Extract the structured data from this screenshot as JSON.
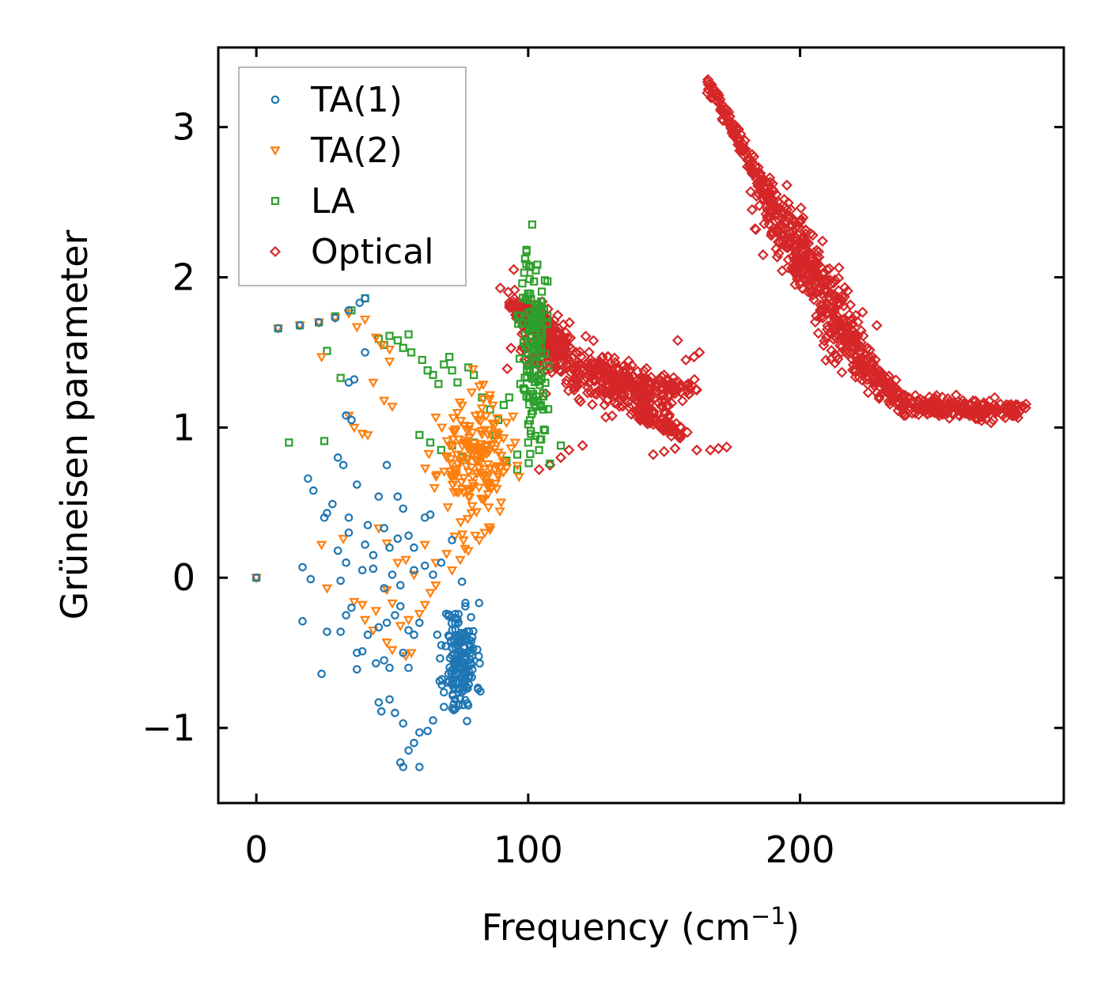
{
  "chart_data": {
    "type": "scatter",
    "title": "",
    "xlabel": "Frequency (cm",
    "xlabel_sup": "−1",
    "xlabel_close": ")",
    "ylabel": "Grüneisen parameter",
    "xlim": [
      -14,
      297
    ],
    "ylim": [
      -1.5,
      3.53
    ],
    "xticks": [
      0,
      100,
      200
    ],
    "xtick_labels": [
      "0",
      "100",
      "200"
    ],
    "yticks": [
      -1,
      0,
      1,
      2,
      3
    ],
    "ytick_labels": [
      "−1",
      "0",
      "1",
      "2",
      "3"
    ],
    "grid": false,
    "legend_position": "top-left",
    "series": [
      {
        "name": "TA(1)",
        "marker": "circle",
        "color": "#1f77b4",
        "points": [
          [
            0,
            0
          ],
          [
            8,
            1.66
          ],
          [
            16,
            1.68
          ],
          [
            23,
            1.7
          ],
          [
            29,
            1.73
          ],
          [
            34,
            1.78
          ],
          [
            38,
            1.83
          ],
          [
            40,
            1.86
          ],
          [
            34,
            1.3
          ],
          [
            36,
            1.32
          ],
          [
            40,
            1.5
          ],
          [
            33,
            1.08
          ],
          [
            35,
            1.05
          ],
          [
            30,
            0.8
          ],
          [
            32,
            0.75
          ],
          [
            19,
            0.66
          ],
          [
            21,
            0.58
          ],
          [
            37,
            0.62
          ],
          [
            48,
            0.75
          ],
          [
            45,
            0.54
          ],
          [
            52,
            0.54
          ],
          [
            54,
            0.46
          ],
          [
            28,
            0.49
          ],
          [
            25,
            0.4
          ],
          [
            26,
            0.43
          ],
          [
            34,
            0.4
          ],
          [
            30,
            0.18
          ],
          [
            34,
            0.3
          ],
          [
            40,
            0.22
          ],
          [
            41,
            0.35
          ],
          [
            43,
            0.15
          ],
          [
            47,
            0.33
          ],
          [
            49,
            0.2
          ],
          [
            52,
            0.26
          ],
          [
            56,
            0.28
          ],
          [
            58,
            0.2
          ],
          [
            62,
            0.4
          ],
          [
            64,
            0.42
          ],
          [
            17,
            0.07
          ],
          [
            20,
            -0.01
          ],
          [
            31,
            -0.02
          ],
          [
            33,
            0.1
          ],
          [
            39,
            0.05
          ],
          [
            43,
            0.06
          ],
          [
            47,
            -0.07
          ],
          [
            50,
            0.02
          ],
          [
            53,
            -0.05
          ],
          [
            58,
            0.05
          ],
          [
            62,
            0.08
          ],
          [
            65,
            0.02
          ],
          [
            68,
            0.1
          ],
          [
            72,
            0.25
          ],
          [
            17,
            -0.29
          ],
          [
            26,
            -0.36
          ],
          [
            31,
            -0.36
          ],
          [
            33,
            -0.25
          ],
          [
            35,
            -0.2
          ],
          [
            41,
            -0.38
          ],
          [
            45,
            -0.33
          ],
          [
            48,
            -0.3
          ],
          [
            51,
            -0.25
          ],
          [
            53,
            -0.19
          ],
          [
            56,
            -0.35
          ],
          [
            58,
            -0.38
          ],
          [
            60,
            -0.3
          ],
          [
            37,
            -0.5
          ],
          [
            39,
            -0.49
          ],
          [
            37,
            -0.61
          ],
          [
            44,
            -0.57
          ],
          [
            47,
            -0.55
          ],
          [
            49,
            -0.6
          ],
          [
            54,
            -0.5
          ],
          [
            56,
            -0.6
          ],
          [
            24,
            -0.64
          ],
          [
            45,
            -0.83
          ],
          [
            46,
            -0.89
          ],
          [
            49,
            -0.81
          ],
          [
            51,
            -0.9
          ],
          [
            54,
            -0.97
          ],
          [
            53,
            -1.23
          ],
          [
            54,
            -1.26
          ],
          [
            60,
            -1.26
          ],
          [
            58,
            -1.1
          ],
          [
            56,
            -1.15
          ],
          [
            60,
            -1.03
          ],
          [
            63,
            -1.02
          ],
          [
            65,
            -0.95
          ],
          [
            69,
            -0.86
          ]
        ],
        "cluster": {
          "center": [
            75,
            -0.55
          ],
          "spread": [
            5,
            0.32
          ],
          "count": 170,
          "seed": 11
        }
      },
      {
        "name": "TA(2)",
        "marker": "triangle-down",
        "color": "#ff7f0e",
        "points": [
          [
            0,
            0
          ],
          [
            8,
            1.66
          ],
          [
            16,
            1.68
          ],
          [
            23,
            1.7
          ],
          [
            29,
            1.73
          ],
          [
            34,
            1.76
          ],
          [
            37,
            1.67
          ],
          [
            40,
            1.72
          ],
          [
            44,
            1.6
          ],
          [
            46,
            1.55
          ],
          [
            49,
            1.52
          ],
          [
            24,
            1.47
          ],
          [
            49,
            1.44
          ],
          [
            43,
            1.3
          ],
          [
            47,
            1.18
          ],
          [
            50,
            1.14
          ],
          [
            34,
            1.08
          ],
          [
            36,
            1.0
          ],
          [
            39,
            0.96
          ],
          [
            41,
            0.95
          ],
          [
            24,
            0.22
          ],
          [
            32,
            0.26
          ],
          [
            26,
            -0.07
          ],
          [
            36,
            -0.16
          ],
          [
            39,
            -0.18
          ],
          [
            44,
            -0.22
          ],
          [
            40,
            -0.28
          ],
          [
            43,
            -0.35
          ],
          [
            48,
            -0.43
          ],
          [
            50,
            -0.48
          ],
          [
            55,
            -0.52
          ],
          [
            57,
            -0.5
          ],
          [
            48,
            -0.08
          ],
          [
            50,
            -0.17
          ],
          [
            53,
            -0.32
          ],
          [
            56,
            -0.28
          ],
          [
            60,
            -0.24
          ],
          [
            62,
            -0.18
          ],
          [
            64,
            -0.1
          ],
          [
            66,
            -0.05
          ],
          [
            45,
            0.33
          ],
          [
            48,
            0.23
          ],
          [
            52,
            0.1
          ],
          [
            55,
            0.12
          ],
          [
            58,
            0.02
          ],
          [
            62,
            0.22
          ],
          [
            66,
            0.1
          ],
          [
            70,
            0.16
          ],
          [
            72,
            0.05
          ],
          [
            75,
            0.12
          ],
          [
            78,
            0.18
          ],
          [
            82,
            0.25
          ],
          [
            84,
            0.3
          ],
          [
            86,
            0.32
          ]
        ],
        "cluster": {
          "center": [
            80,
            0.78
          ],
          "spread": [
            11,
            0.33
          ],
          "count": 190,
          "seed": 23
        }
      },
      {
        "name": "LA",
        "marker": "square",
        "color": "#2ca02c",
        "points": [
          [
            0,
            0
          ],
          [
            8,
            1.66
          ],
          [
            16,
            1.68
          ],
          [
            23,
            1.7
          ],
          [
            29,
            1.74
          ],
          [
            35,
            1.78
          ],
          [
            40,
            1.86
          ],
          [
            12,
            0.9
          ],
          [
            25,
            0.91
          ],
          [
            31,
            1.33
          ],
          [
            26,
            1.51
          ],
          [
            45,
            1.59
          ],
          [
            47,
            1.55
          ],
          [
            49,
            1.61
          ],
          [
            52,
            1.58
          ],
          [
            54,
            1.53
          ],
          [
            56,
            1.62
          ],
          [
            57,
            1.5
          ],
          [
            61,
            1.45
          ],
          [
            63,
            1.38
          ],
          [
            65,
            1.35
          ],
          [
            67,
            1.29
          ],
          [
            69,
            1.42
          ],
          [
            71,
            1.47
          ],
          [
            72,
            1.38
          ],
          [
            74,
            1.3
          ],
          [
            78,
            1.4
          ],
          [
            80,
            1.35
          ],
          [
            83,
            1.2
          ],
          [
            86,
            1.12
          ],
          [
            89,
            1.05
          ],
          [
            91,
            1.15
          ],
          [
            93,
            1.2
          ],
          [
            60,
            0.95
          ],
          [
            64,
            0.9
          ],
          [
            68,
            0.85
          ],
          [
            72,
            0.88
          ],
          [
            76,
            0.8
          ],
          [
            80,
            0.9
          ],
          [
            84,
            0.85
          ],
          [
            88,
            0.95
          ],
          [
            92,
            0.78
          ],
          [
            96,
            0.82
          ],
          [
            100,
            0.9
          ],
          [
            104,
            0.85
          ],
          [
            108,
            0.76
          ],
          [
            112,
            0.88
          ],
          [
            96,
            0.72
          ]
        ],
        "cluster": {
          "center": [
            102,
            1.55
          ],
          "spread": [
            4,
            0.55
          ],
          "count": 140,
          "seed": 37
        }
      },
      {
        "name": "Optical",
        "marker": "diamond",
        "color": "#d62728",
        "points": [
          [
            162,
            0.85
          ],
          [
            167,
            0.85
          ],
          [
            170,
            0.86
          ],
          [
            173,
            0.87
          ],
          [
            155,
            1.58
          ],
          [
            158,
            1.45
          ],
          [
            161,
            1.47
          ],
          [
            163,
            1.5
          ],
          [
            104,
            0.72
          ],
          [
            108,
            0.75
          ],
          [
            112,
            0.8
          ],
          [
            115,
            0.85
          ],
          [
            120,
            0.88
          ],
          [
            146,
            0.82
          ],
          [
            150,
            0.84
          ],
          [
            154,
            0.86
          ],
          [
            280,
            1.15
          ],
          [
            282,
            1.14
          ],
          [
            283,
            1.13
          ],
          [
            276,
            1.12
          ],
          [
            271,
            1.05
          ],
          [
            166,
            3.3
          ],
          [
            168,
            3.25
          ],
          [
            170,
            3.2
          ]
        ],
        "bands": [
          {
            "from": [
              166,
              3.3
            ],
            "to": [
              188,
              2.55
            ],
            "width": 1.8,
            "count": 120,
            "seed": 41
          },
          {
            "from": [
              188,
              2.55
            ],
            "to": [
              222,
              1.45
            ],
            "width": 7.0,
            "count": 430,
            "seed": 43
          },
          {
            "from": [
              222,
              1.45
            ],
            "to": [
              238,
              1.15
            ],
            "width": 3.5,
            "count": 110,
            "seed": 47
          },
          {
            "from": [
              238,
              1.15
            ],
            "to": [
              281,
              1.1
            ],
            "width": 3.0,
            "count": 200,
            "seed": 53
          },
          {
            "from": [
              94,
              1.85
            ],
            "to": [
              112,
              1.55
            ],
            "width": 4.5,
            "count": 130,
            "seed": 59
          },
          {
            "from": [
              100,
              1.55
            ],
            "to": [
              150,
              1.15
            ],
            "width": 8.0,
            "count": 340,
            "seed": 61
          },
          {
            "from": [
              128,
              1.3
            ],
            "to": [
              160,
              1.25
            ],
            "width": 3.5,
            "count": 110,
            "seed": 67
          },
          {
            "from": [
              140,
              1.1
            ],
            "to": [
              158,
              0.95
            ],
            "width": 3.0,
            "count": 80,
            "seed": 71
          }
        ]
      }
    ]
  }
}
